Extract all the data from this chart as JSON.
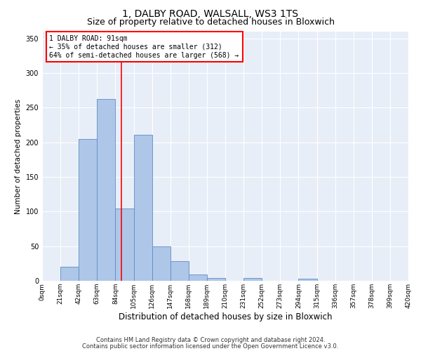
{
  "title_line1": "1, DALBY ROAD, WALSALL, WS3 1TS",
  "title_line2": "Size of property relative to detached houses in Bloxwich",
  "xlabel": "Distribution of detached houses by size in Bloxwich",
  "ylabel": "Number of detached properties",
  "bar_color": "#aec6e8",
  "bar_edge_color": "#5b8ec4",
  "annotation_text": "1 DALBY ROAD: 91sqm\n← 35% of detached houses are smaller (312)\n64% of semi-detached houses are larger (568) →",
  "vline_color": "red",
  "vline_x": 91,
  "bins": [
    0,
    21,
    42,
    63,
    84,
    105,
    126,
    147,
    168,
    189,
    210,
    231,
    252,
    273,
    294,
    315,
    336,
    357,
    378,
    399,
    420
  ],
  "bar_heights": [
    0,
    20,
    205,
    263,
    104,
    211,
    50,
    28,
    9,
    4,
    0,
    4,
    0,
    0,
    3,
    0,
    0,
    0,
    0,
    0
  ],
  "ylim": [
    0,
    360
  ],
  "yticks": [
    0,
    50,
    100,
    150,
    200,
    250,
    300,
    350
  ],
  "plot_bg_color": "#e8eef7",
  "grid_color": "#ffffff",
  "footer_line1": "Contains HM Land Registry data © Crown copyright and database right 2024.",
  "footer_line2": "Contains public sector information licensed under the Open Government Licence v3.0.",
  "title_fontsize": 10,
  "subtitle_fontsize": 9,
  "tick_label_fontsize": 6.5,
  "xlabel_fontsize": 8.5,
  "ylabel_fontsize": 7.5,
  "annotation_fontsize": 7,
  "footer_fontsize": 6
}
